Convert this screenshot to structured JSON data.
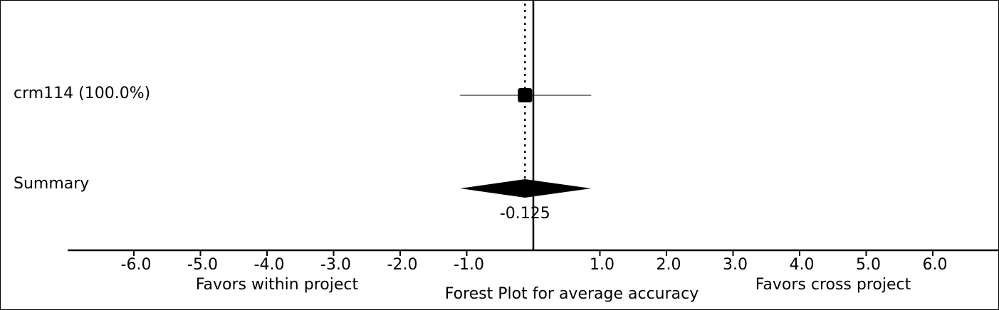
{
  "chart_data": {
    "type": "forest",
    "title": "Forest Plot for average accuracy",
    "xlim": [
      -7,
      7
    ],
    "x_ticks": [
      -6,
      -5,
      -4,
      -3,
      -2,
      -1,
      1,
      2,
      3,
      4,
      5,
      6
    ],
    "x_tick_labels": [
      "-6.0",
      "-5.0",
      "-4.0",
      "-3.0",
      "-2.0",
      "-1.0",
      "1.0",
      "2.0",
      "3.0",
      "4.0",
      "5.0",
      "6.0"
    ],
    "left_annotation": "Favors within project",
    "right_annotation": "Favors cross project",
    "reference_line": 0,
    "studies": [
      {
        "label": "crm114 (100.0%)",
        "estimate": -0.125,
        "ci": [
          -1.1,
          0.87
        ]
      }
    ],
    "summary": {
      "label": "Summary",
      "estimate": -0.125,
      "ci": [
        -1.1,
        0.87
      ],
      "value_label": "-0.125"
    }
  }
}
